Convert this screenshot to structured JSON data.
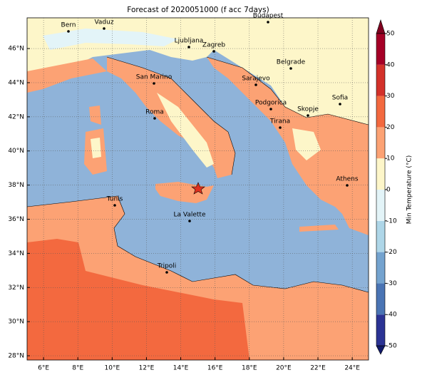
{
  "title": "Forecast of 2020051000 (f acc 7days)",
  "map": {
    "lon_lim": [
      5.04,
      24.95
    ],
    "lat_lim": [
      27.75,
      47.8
    ],
    "lon_ticks": [
      {
        "value": 6,
        "label": "6°E"
      },
      {
        "value": 8,
        "label": "8°E"
      },
      {
        "value": 10,
        "label": "10°E"
      },
      {
        "value": 12,
        "label": "12°E"
      },
      {
        "value": 14,
        "label": "14°E"
      },
      {
        "value": 16,
        "label": "16°E"
      },
      {
        "value": 18,
        "label": "18°E"
      },
      {
        "value": 20,
        "label": "20°E"
      },
      {
        "value": 22,
        "label": "22°E"
      },
      {
        "value": 24,
        "label": "24°E"
      }
    ],
    "lat_ticks": [
      {
        "value": 28,
        "label": "28°N"
      },
      {
        "value": 30,
        "label": "30°N"
      },
      {
        "value": 32,
        "label": "32°N"
      },
      {
        "value": 34,
        "label": "34°N"
      },
      {
        "value": 36,
        "label": "36°N"
      },
      {
        "value": 38,
        "label": "38°N"
      },
      {
        "value": 40,
        "label": "40°N"
      },
      {
        "value": 42,
        "label": "42°N"
      },
      {
        "value": 44,
        "label": "44°N"
      },
      {
        "value": 46,
        "label": "46°N"
      }
    ],
    "grid": true,
    "cities": [
      "Bern",
      "Vaduz",
      "Budapest",
      "Ljubljana",
      "Zagreb",
      "Belgrade",
      "San Marino",
      "Sarajevo",
      "Sofia",
      "Podgorica",
      "Skopje",
      "Roma",
      "Tirana",
      "Athens",
      "Tunis",
      "La Valette",
      "Tripoli"
    ]
  },
  "colorbar": {
    "label": "Min Temperature (°C)",
    "lim": [
      -50,
      50
    ],
    "ticks": [
      -50,
      -40,
      -30,
      -20,
      -10,
      0,
      10,
      20,
      30,
      40,
      50
    ],
    "colors": [
      "#2b3394",
      "#4a74b4",
      "#74a3cf",
      "#aed6e8",
      "#e3f4f8",
      "#fdf6c9",
      "#fca274",
      "#f3693f",
      "#d3312a",
      "#a50026"
    ]
  }
}
